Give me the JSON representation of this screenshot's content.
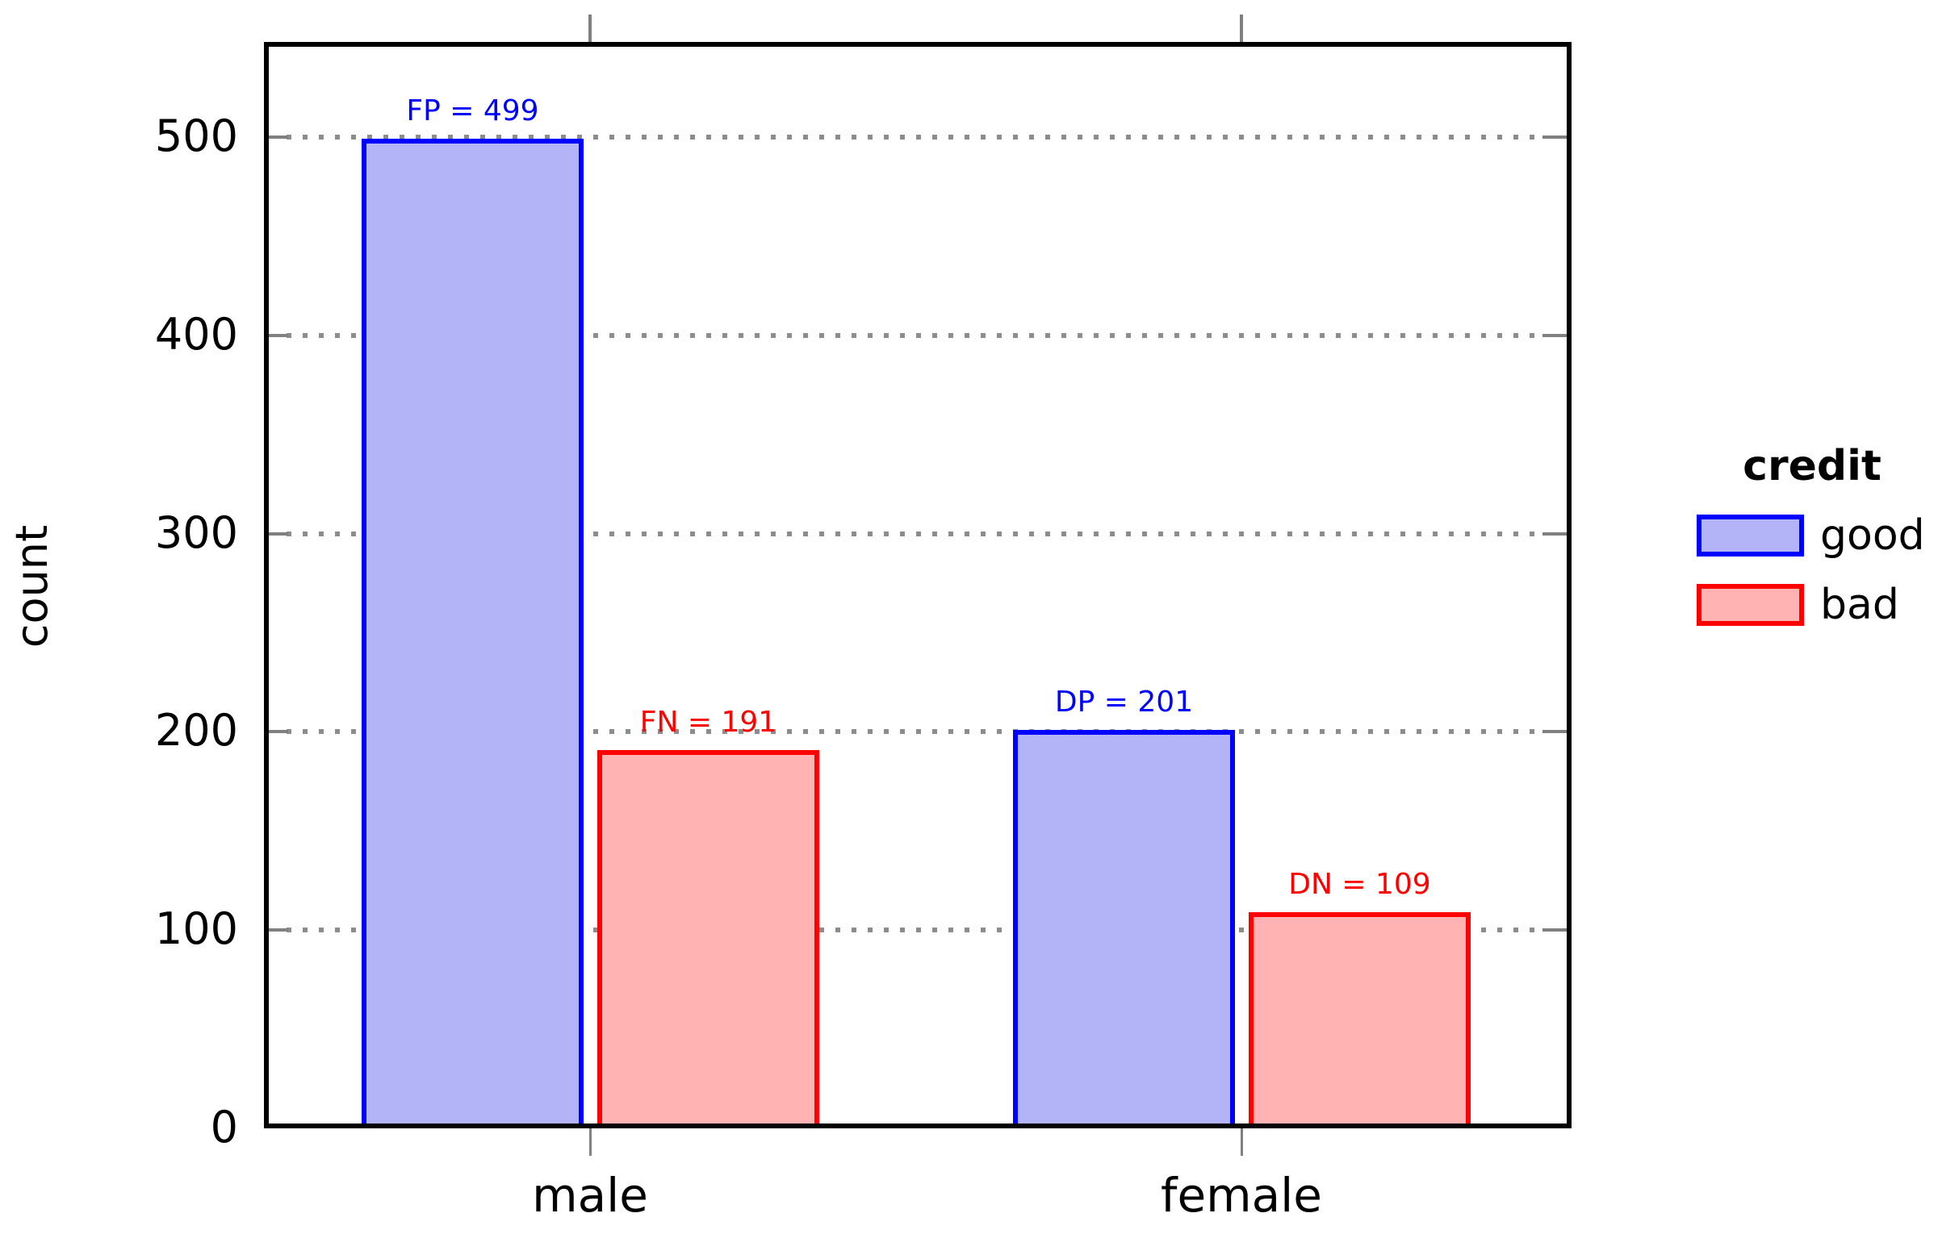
{
  "chart_data": {
    "type": "bar",
    "title": "",
    "categories": [
      "male",
      "female"
    ],
    "series": [
      {
        "name": "good",
        "values": [
          499,
          201
        ],
        "fill": "#b3b3f7",
        "border": "#0000ff"
      },
      {
        "name": "bad",
        "values": [
          191,
          109
        ],
        "fill": "#ffb3b3",
        "border": "#ff0000"
      }
    ],
    "annotations": [
      {
        "text": "FP = 499",
        "series": 0,
        "category": 0
      },
      {
        "text": "FN = 191",
        "series": 1,
        "category": 0
      },
      {
        "text": "DP = 201",
        "series": 0,
        "category": 1
      },
      {
        "text": "DN = 109",
        "series": 1,
        "category": 1
      }
    ],
    "xlabel": "",
    "ylabel": "count",
    "yticks": [
      0,
      100,
      200,
      300,
      400,
      500
    ],
    "ylim": [
      0,
      548
    ],
    "grid": "horizontal-dotted",
    "legend": {
      "title": "credit",
      "entries": [
        "good",
        "bad"
      ],
      "position": "right-outside"
    }
  },
  "colors": {
    "background": "#ffffff",
    "axis": "#000000",
    "grid_dots": "#8c8c8c",
    "tick": "#808080",
    "good_fill": "#b3b3f7",
    "good_border": "#0000ff",
    "bad_fill": "#ffb3b3",
    "bad_border": "#ff0000",
    "annotation_good": "#0000ff",
    "annotation_bad": "#ff0000",
    "text": "#000000"
  }
}
